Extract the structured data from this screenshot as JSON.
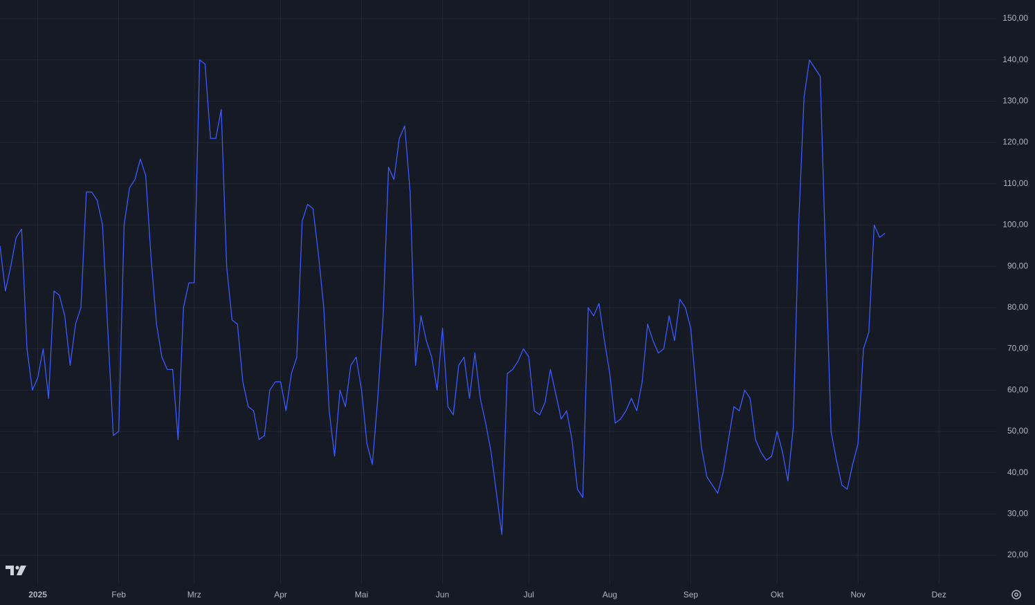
{
  "chart_data": {
    "type": "line",
    "color": "#3d5afe",
    "categories": [
      null,
      null,
      null,
      null,
      null,
      null,
      null,
      "2025",
      null,
      null,
      null,
      null,
      null,
      null,
      null,
      null,
      null,
      null,
      null,
      null,
      null,
      null,
      "Feb",
      null,
      null,
      null,
      null,
      null,
      null,
      null,
      null,
      null,
      null,
      null,
      null,
      null,
      "Mrz",
      null,
      null,
      null,
      null,
      null,
      null,
      null,
      null,
      null,
      null,
      null,
      null,
      null,
      null,
      null,
      "Apr",
      null,
      null,
      null,
      null,
      null,
      null,
      null,
      null,
      null,
      null,
      null,
      null,
      null,
      null,
      "Mai",
      null,
      null,
      null,
      null,
      null,
      null,
      null,
      null,
      null,
      null,
      null,
      null,
      null,
      null,
      "Jun",
      null,
      null,
      null,
      null,
      null,
      null,
      null,
      null,
      null,
      null,
      null,
      null,
      null,
      null,
      null,
      "Jul",
      null,
      null,
      null,
      null,
      null,
      null,
      null,
      null,
      null,
      null,
      null,
      null,
      null,
      null,
      "Aug",
      null,
      null,
      null,
      null,
      null,
      null,
      null,
      null,
      null,
      null,
      null,
      null,
      null,
      null,
      "Sep",
      null,
      null,
      null,
      null,
      null,
      null,
      null,
      null,
      null,
      null,
      null,
      null,
      null,
      null,
      null,
      "Okt",
      null,
      null,
      null,
      null,
      null,
      null,
      null,
      null,
      null,
      null,
      null,
      null,
      null,
      null,
      "Nov",
      null,
      null,
      null,
      null,
      null,
      null,
      null,
      null,
      null,
      null,
      null,
      null,
      null,
      null,
      "Dez",
      null,
      null,
      null,
      null,
      null,
      null,
      null,
      null,
      null,
      null
    ],
    "values": [
      95,
      84,
      90,
      97,
      99,
      70,
      60,
      63,
      70,
      58,
      84,
      83,
      78,
      66,
      76,
      80,
      108,
      108,
      106,
      100,
      74,
      49,
      50,
      100,
      109,
      111,
      116,
      112,
      92,
      76,
      68,
      65,
      65,
      48,
      80,
      86,
      86,
      140,
      139,
      121,
      121,
      128,
      90,
      77,
      76,
      62,
      56,
      55,
      48,
      49,
      60,
      62,
      62,
      55,
      64,
      68,
      101,
      105,
      104,
      93,
      80,
      55,
      44,
      60,
      56,
      66,
      68,
      60,
      47,
      42,
      58,
      78,
      114,
      111,
      121,
      124,
      108,
      66,
      78,
      72,
      68,
      60,
      75,
      56,
      54,
      66,
      68,
      58,
      69,
      58,
      52,
      45,
      35,
      25,
      64,
      65,
      67,
      70,
      68,
      55,
      54,
      57,
      65,
      59,
      53,
      55,
      48,
      36,
      34,
      80,
      78,
      81,
      72,
      64,
      52,
      53,
      55,
      58,
      55,
      62,
      76,
      72,
      69,
      70,
      78,
      72,
      82,
      80,
      75,
      60,
      46,
      39,
      37,
      35,
      40,
      48,
      56,
      55,
      60,
      58,
      48,
      45,
      43,
      44,
      50,
      45,
      38,
      51,
      100,
      131,
      140,
      138,
      136,
      92,
      50,
      43,
      37,
      36,
      42,
      47,
      70,
      74,
      100,
      97,
      98,
      null,
      null,
      null,
      null,
      null,
      null,
      null,
      null,
      null,
      null,
      null,
      null,
      null,
      null,
      null,
      null,
      null,
      null,
      null,
      null
    ],
    "ylim": [
      12.96,
      154.52
    ],
    "yticks": [
      {
        "value": 20,
        "label": "20,00"
      },
      {
        "value": 30,
        "label": "30,00"
      },
      {
        "value": 40,
        "label": "40,00"
      },
      {
        "value": 50,
        "label": "50,00"
      },
      {
        "value": 60,
        "label": "60,00"
      },
      {
        "value": 70,
        "label": "70,00"
      },
      {
        "value": 80,
        "label": "80,00"
      },
      {
        "value": 90,
        "label": "90,00"
      },
      {
        "value": 100,
        "label": "100,00"
      },
      {
        "value": 110,
        "label": "110,00"
      },
      {
        "value": 120,
        "label": "120,00"
      },
      {
        "value": 130,
        "label": "130,00"
      },
      {
        "value": 140,
        "label": "140,00"
      },
      {
        "value": 150,
        "label": "150,00"
      }
    ],
    "grid": true
  }
}
